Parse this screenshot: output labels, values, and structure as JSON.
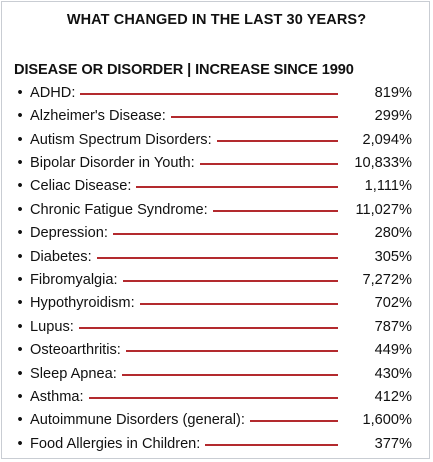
{
  "title": "WHAT CHANGED IN THE LAST 30 YEARS?",
  "header": "DISEASE OR DISORDER | INCREASE SINCE 1990",
  "line_color": "#b32a2e",
  "items": [
    {
      "name": "ADHD:",
      "value": "819%"
    },
    {
      "name": "Alzheimer's Disease:",
      "value": "299%"
    },
    {
      "name": "Autism Spectrum Disorders:",
      "value": "2,094%"
    },
    {
      "name": "Bipolar Disorder in Youth:",
      "value": "10,833%"
    },
    {
      "name": "Celiac Disease:",
      "value": "1,111%"
    },
    {
      "name": "Chronic Fatigue Syndrome:",
      "value": "11,027%"
    },
    {
      "name": "Depression:",
      "value": "280%"
    },
    {
      "name": "Diabetes:",
      "value": "305%"
    },
    {
      "name": "Fibromyalgia:",
      "value": "7,272%"
    },
    {
      "name": "Hypothyroidism:",
      "value": "702%"
    },
    {
      "name": "Lupus:",
      "value": "787%"
    },
    {
      "name": "Osteoarthritis:",
      "value": "449%"
    },
    {
      "name": "Sleep Apnea:",
      "value": "430%"
    },
    {
      "name": "Asthma:",
      "value": "412%"
    },
    {
      "name": "Autoimmune Disorders (general):",
      "value": "1,600%"
    },
    {
      "name": "Food Allergies in Children:",
      "value": "377%"
    }
  ]
}
